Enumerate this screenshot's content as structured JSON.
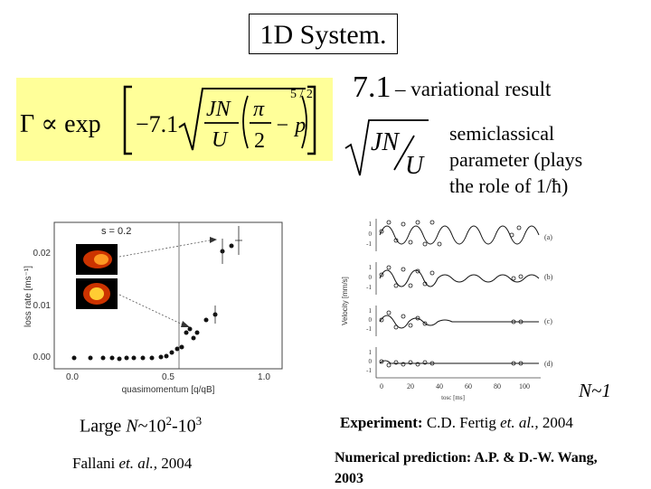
{
  "title": "1D System.",
  "formula": {
    "gamma": "Γ ∝ exp",
    "coefficient": "−7.1",
    "jn": "JN",
    "u": "U",
    "pi": "π",
    "two": "2",
    "minus_p": "− p",
    "exponent": "5 / 2"
  },
  "variational": {
    "coef": "7.1",
    "text": "– variational result"
  },
  "semiclassical": {
    "jn": "JN",
    "u": "U",
    "line1": "semiclassical",
    "line2": "parameter (plays",
    "line3": "the role of 1/ħ)"
  },
  "left_chart": {
    "s_label": "s = 0.2",
    "ylabel": "loss rate [ms⁻¹]",
    "xlabel": "quasimomentum [q/qB]",
    "y_ticks": [
      "0.00",
      "0.01",
      "0.02"
    ],
    "x_ticks": [
      "0.0",
      "0.5",
      "1.0"
    ]
  },
  "right_chart": {
    "ylabel": "Velocity [mm/s]",
    "xlabel": "tosc [ms]",
    "panel_labels": [
      "(a)",
      "(b)",
      "(c)",
      "(d)"
    ],
    "y_ticks": [
      "1",
      "0",
      "-1"
    ],
    "x_ticks": [
      "0",
      "20",
      "40",
      "60",
      "80",
      "100"
    ]
  },
  "n1": "N~1",
  "large_n": {
    "prefix": "Large ",
    "n": "N",
    "tilde": "~10",
    "e1": "2",
    "dash": "-10",
    "e2": "3"
  },
  "fallani": {
    "name": "Fallani ",
    "etal": "et. al.,",
    "year": " 2004"
  },
  "experiment": {
    "label": "Experiment:",
    "authors": " C.D. Fertig ",
    "etal": "et. al.,",
    "year": " 2004"
  },
  "numerical": {
    "label": "Numerical prediction:",
    "authors": " A.P. & D.-W. Wang, 2003"
  },
  "colors": {
    "formula_bg": "#ffff99",
    "atom_cloud": "#ff9922"
  }
}
